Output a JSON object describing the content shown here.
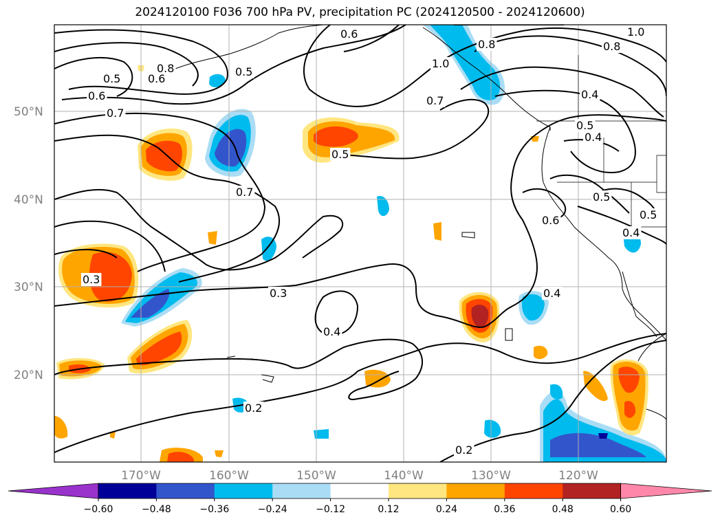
{
  "title": "2024120100 F036 700 hPa PV, precipitation PC (2024120500 - 2024120600)",
  "map": {
    "lat_labels": [
      "50°N",
      "40°N",
      "30°N",
      "20°N"
    ],
    "lon_labels": [
      "170°W",
      "160°W",
      "150°W",
      "140°W",
      "130°W",
      "120°W"
    ],
    "contour_labels": [
      {
        "id": "c1",
        "text": "0.6"
      },
      {
        "id": "c2",
        "text": "0.8"
      },
      {
        "id": "c3",
        "text": "1.0"
      },
      {
        "id": "c4",
        "text": "0.8"
      },
      {
        "id": "c5",
        "text": "1.0"
      },
      {
        "id": "c6",
        "text": "0.5"
      },
      {
        "id": "c7",
        "text": "0.8"
      },
      {
        "id": "c8",
        "text": "0.6"
      },
      {
        "id": "c9",
        "text": "0.7"
      },
      {
        "id": "c10",
        "text": "0.5"
      },
      {
        "id": "c11",
        "text": "0.6"
      },
      {
        "id": "c12",
        "text": "0.7"
      },
      {
        "id": "c13",
        "text": "0.5"
      },
      {
        "id": "c14",
        "text": "0.4"
      },
      {
        "id": "c15",
        "text": "0.5"
      },
      {
        "id": "c16",
        "text": "0.4"
      },
      {
        "id": "c17",
        "text": "0.5"
      },
      {
        "id": "c18",
        "text": "0.5"
      },
      {
        "id": "c19",
        "text": "0.7"
      },
      {
        "id": "c20",
        "text": "0.6"
      },
      {
        "id": "c21",
        "text": "0.3"
      },
      {
        "id": "c22",
        "text": "0.3"
      },
      {
        "id": "c23",
        "text": "0.4"
      },
      {
        "id": "c24",
        "text": "0.4"
      },
      {
        "id": "c25",
        "text": "0.2"
      },
      {
        "id": "c26",
        "text": "0.2"
      },
      {
        "id": "c27",
        "text": "0.4"
      }
    ]
  },
  "colorbar": {
    "colors": [
      "#9933cc",
      "#000099",
      "#3355cc",
      "#00bbee",
      "#aaddf5",
      "#ffffff",
      "#ffe680",
      "#ffa500",
      "#ff4500",
      "#b22222",
      "#ff88aa"
    ],
    "tick_labels": [
      "−0.60",
      "−0.48",
      "−0.36",
      "−0.24",
      "−0.12",
      "0.12",
      "0.24",
      "0.36",
      "0.48",
      "0.60"
    ]
  },
  "colors": {
    "contour": "#000000",
    "grid": "#b0b0b0",
    "coast": "#000000"
  }
}
